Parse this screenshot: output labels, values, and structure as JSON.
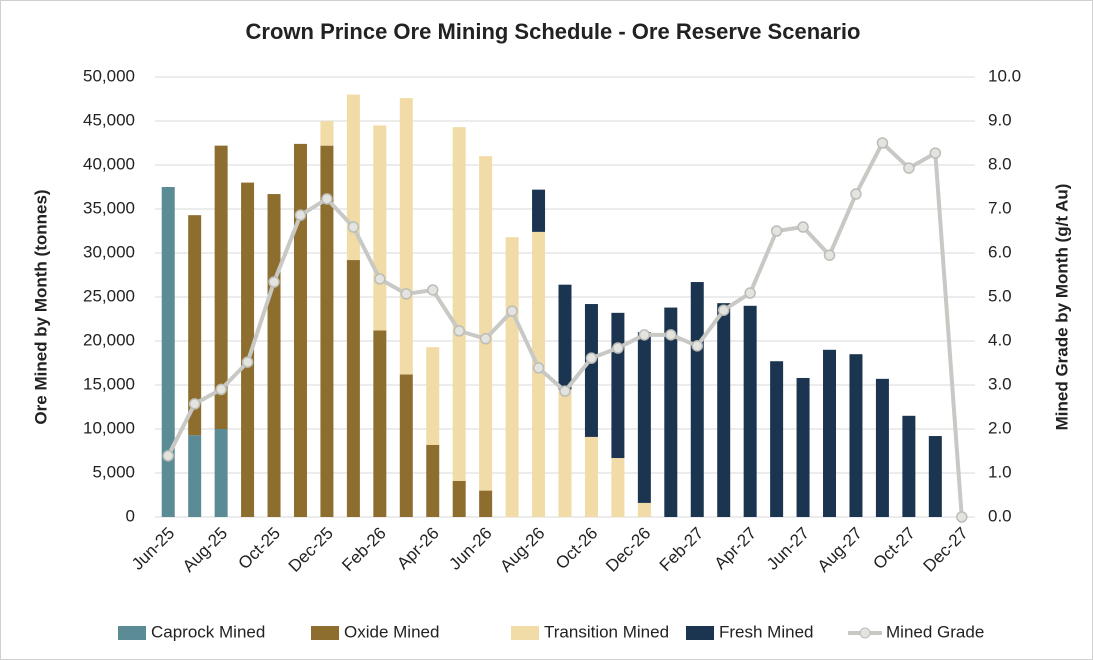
{
  "chart_data": {
    "type": "bar",
    "title": "Crown Prince Ore Mining Schedule - Ore Reserve Scenario",
    "y_label": "Ore Mined by Month (tonnes)",
    "y2_label": "Mined Grade by Month (g/t Au)",
    "stacked": true,
    "grid": true,
    "legend": "bottom",
    "categories": [
      "Jun-25",
      null,
      "Aug-25",
      null,
      "Oct-25",
      null,
      "Dec-25",
      null,
      "Feb-26",
      null,
      "Apr-26",
      null,
      "Jun-26",
      null,
      "Aug-26",
      null,
      "Oct-26",
      null,
      "Dec-26",
      null,
      "Feb-27",
      null,
      "Apr-27",
      null,
      "Jun-27",
      null,
      "Aug-27",
      null,
      "Oct-27",
      null,
      "Dec-27"
    ],
    "series": [
      {
        "name": "Caprock Mined",
        "type": "bar",
        "color": "#5b8b95",
        "values": [
          37500,
          9300,
          10000,
          null,
          null,
          null,
          null,
          null,
          null,
          null,
          null,
          null,
          null,
          null,
          null,
          null,
          null,
          null,
          null,
          null,
          null,
          null,
          null,
          null,
          null,
          null,
          null,
          null,
          null,
          null,
          null
        ]
      },
      {
        "name": "Oxide Mined",
        "type": "bar",
        "color": "#8e6e2f",
        "values": [
          null,
          25000,
          32200,
          38000,
          36700,
          42400,
          42200,
          29200,
          21200,
          16200,
          8200,
          4100,
          3000,
          null,
          null,
          null,
          null,
          null,
          null,
          null,
          null,
          null,
          null,
          null,
          null,
          null,
          null,
          null,
          null,
          null,
          null
        ]
      },
      {
        "name": "Transition Mined",
        "type": "bar",
        "color": "#f1dba6",
        "values": [
          null,
          null,
          null,
          null,
          null,
          null,
          2800,
          18800,
          23300,
          31400,
          11100,
          40200,
          38000,
          31800,
          32400,
          14500,
          9100,
          6700,
          1600,
          null,
          null,
          null,
          null,
          null,
          null,
          null,
          null,
          null,
          null,
          null,
          null
        ]
      },
      {
        "name": "Fresh Mined",
        "type": "bar",
        "color": "#1b3550",
        "values": [
          null,
          null,
          null,
          null,
          null,
          null,
          null,
          null,
          null,
          null,
          null,
          null,
          null,
          null,
          4800,
          11900,
          15100,
          16500,
          19400,
          23800,
          26700,
          24300,
          24000,
          17700,
          15800,
          19000,
          18500,
          15700,
          11500,
          9200,
          null
        ]
      },
      {
        "name": "Mined Grade",
        "type": "line",
        "axis": "y2",
        "color": "#c8c8c4",
        "values": [
          1.39,
          2.57,
          2.9,
          3.52,
          5.34,
          6.86,
          7.23,
          6.59,
          5.41,
          5.07,
          5.16,
          4.23,
          4.05,
          4.68,
          3.39,
          2.86,
          3.61,
          3.84,
          4.14,
          4.14,
          3.89,
          4.7,
          5.09,
          6.5,
          6.59,
          5.95,
          7.34,
          8.5,
          7.93,
          8.27,
          0
        ]
      }
    ],
    "ylim": [
      0,
      50000
    ],
    "yticks": [
      0,
      {
        "value": 5000,
        "label": "5,000"
      },
      {
        "value": 10000,
        "label": "10,000"
      },
      {
        "value": 15000,
        "label": "15,000"
      },
      {
        "value": 20000,
        "label": "20,000"
      },
      {
        "value": 25000,
        "label": "25,000"
      },
      {
        "value": 30000,
        "label": "30,000"
      },
      {
        "value": 35000,
        "label": "35,000"
      },
      {
        "value": 40000,
        "label": "40,000"
      },
      {
        "value": 45000,
        "label": "45,000"
      },
      {
        "value": 50000,
        "label": "50,000"
      }
    ],
    "y2lim": [
      0,
      10
    ],
    "y2ticks": [
      {
        "value": 0,
        "label": "0.0"
      },
      {
        "value": 1,
        "label": "1.0"
      },
      {
        "value": 2,
        "label": "2.0"
      },
      {
        "value": 3,
        "label": "3.0"
      },
      {
        "value": 4,
        "label": "4.0"
      },
      {
        "value": 5,
        "label": "5.0"
      },
      {
        "value": 6,
        "label": "6.0"
      },
      {
        "value": 7,
        "label": "7.0"
      },
      {
        "value": 8,
        "label": "8.0"
      },
      {
        "value": 9,
        "label": "9.0"
      },
      {
        "value": 10,
        "label": "10.0"
      }
    ]
  }
}
